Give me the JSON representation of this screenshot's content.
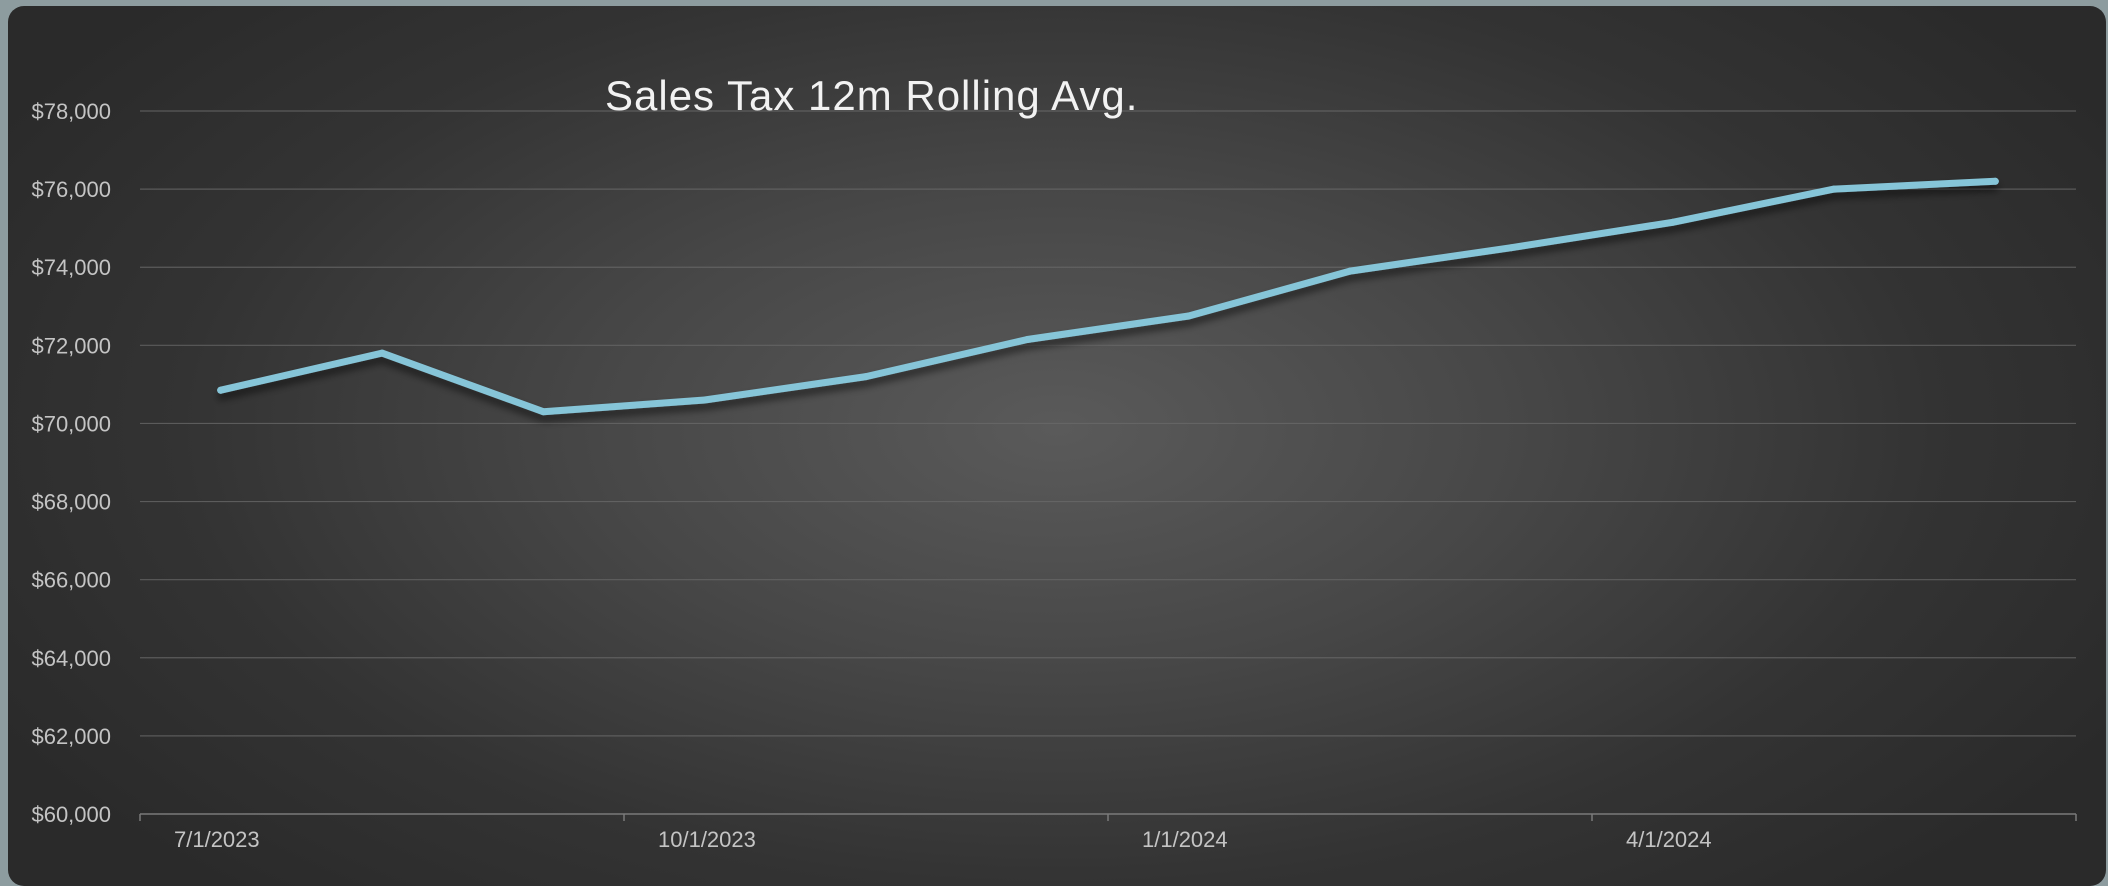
{
  "chart_data": {
    "type": "line",
    "title": "Sales Tax 12m Rolling Avg.",
    "xlabel": "",
    "ylabel": "",
    "x": [
      "7/1/2023",
      "8/1/2023",
      "9/1/2023",
      "10/1/2023",
      "11/1/2023",
      "12/1/2023",
      "1/1/2024",
      "2/1/2024",
      "3/1/2024",
      "4/1/2024",
      "5/1/2024",
      "6/1/2024"
    ],
    "x_tick_labels": [
      "7/1/2023",
      "10/1/2023",
      "1/1/2024",
      "4/1/2024"
    ],
    "series": [
      {
        "values": [
          70850,
          71800,
          70300,
          70600,
          71200,
          72150,
          72750,
          73900,
          74500,
          75150,
          76000,
          76200
        ],
        "color": "#86c5d8"
      }
    ],
    "ylim": [
      60000,
      78000
    ],
    "y_ticks": [
      60000,
      62000,
      64000,
      66000,
      68000,
      70000,
      72000,
      74000,
      76000,
      78000
    ],
    "y_tick_labels": [
      "$60,000",
      "$62,000",
      "$64,000",
      "$66,000",
      "$68,000",
      "$70,000",
      "$72,000",
      "$74,000",
      "$76,000",
      "$78,000"
    ],
    "grid": true,
    "legend": "none"
  }
}
